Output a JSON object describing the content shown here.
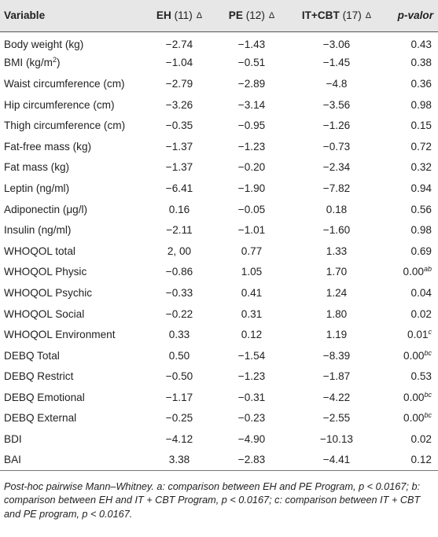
{
  "header": {
    "variable": "Variable",
    "eh": "EH",
    "eh_n": "(11)",
    "pe": "PE",
    "pe_n": "(12)",
    "itcbt": "IT+CBT",
    "itcbt_n": "(17)",
    "delta": "Δ",
    "pvalue": "p-valor"
  },
  "rows": [
    {
      "variable": "Body weight (kg)",
      "eh": "−2.74",
      "pe": "−1.43",
      "itcbt": "−3.06",
      "p": "0.43",
      "sup": ""
    },
    {
      "variable": "BMI (kg/m",
      "var_sup": "2",
      "var_tail": ")",
      "eh": "−1.04",
      "pe": "−0.51",
      "itcbt": "−1.45",
      "p": "0.38",
      "sup": ""
    },
    {
      "variable": "Waist circumference (cm)",
      "eh": "−2.79",
      "pe": "−2.89",
      "itcbt": "−4.8",
      "p": "0.36",
      "sup": ""
    },
    {
      "variable": "Hip circumference (cm)",
      "eh": "−3.26",
      "pe": "−3.14",
      "itcbt": "−3.56",
      "p": "0.98",
      "sup": ""
    },
    {
      "variable": "Thigh circumference (cm)",
      "eh": "−0.35",
      "pe": "−0.95",
      "itcbt": "−1.26",
      "p": "0.15",
      "sup": ""
    },
    {
      "variable": "Fat-free mass (kg)",
      "eh": "−1.37",
      "pe": "−1.23",
      "itcbt": "−0.73",
      "p": "0.72",
      "sup": ""
    },
    {
      "variable": "Fat mass (kg)",
      "eh": "−1.37",
      "pe": "−0.20",
      "itcbt": "−2.34",
      "p": "0.32",
      "sup": ""
    },
    {
      "variable": "Leptin (ng/ml)",
      "eh": "−6.41",
      "pe": "−1.90",
      "itcbt": "−7.82",
      "p": "0.94",
      "sup": ""
    },
    {
      "variable": "Adiponectin (μg/l)",
      "eh": "0.16",
      "pe": "−0.05",
      "itcbt": "0.18",
      "p": "0.56",
      "sup": ""
    },
    {
      "variable": "Insulin (ng/ml)",
      "eh": "−2.11",
      "pe": "−1.01",
      "itcbt": "−1.60",
      "p": "0.98",
      "sup": ""
    },
    {
      "variable": "WHOQOL total",
      "eh": "2, 00",
      "pe": "0.77",
      "itcbt": "1.33",
      "p": "0.69",
      "sup": ""
    },
    {
      "variable": "WHOQOL Physic",
      "eh": "−0.86",
      "pe": "1.05",
      "itcbt": "1.70",
      "p": "0.00",
      "sup": "ab"
    },
    {
      "variable": "WHOQOL Psychic",
      "eh": "−0.33",
      "pe": "0.41",
      "itcbt": "1.24",
      "p": "0.04",
      "sup": ""
    },
    {
      "variable": "WHOQOL Social",
      "eh": "−0.22",
      "pe": "0.31",
      "itcbt": "1.80",
      "p": "0.02",
      "sup": ""
    },
    {
      "variable": "WHOQOL Environment",
      "eh": "0.33",
      "pe": "0.12",
      "itcbt": "1.19",
      "p": "0.01",
      "sup": "c"
    },
    {
      "variable": "DEBQ Total",
      "eh": "0.50",
      "pe": "−1.54",
      "itcbt": "−8.39",
      "p": "0.00",
      "sup": "bc"
    },
    {
      "variable": "DEBQ Restrict",
      "eh": "−0.50",
      "pe": "−1.23",
      "itcbt": "−1.87",
      "p": "0.53",
      "sup": ""
    },
    {
      "variable": "DEBQ Emotional",
      "eh": "−1.17",
      "pe": "−0.31",
      "itcbt": "−4.22",
      "p": "0.00",
      "sup": "bc"
    },
    {
      "variable": "DEBQ External",
      "eh": "−0.25",
      "pe": "−0.23",
      "itcbt": "−2.55",
      "p": "0.00",
      "sup": "bc"
    },
    {
      "variable": "BDI",
      "eh": "−4.12",
      "pe": "−4.90",
      "itcbt": "−10.13",
      "p": "0.02",
      "sup": ""
    },
    {
      "variable": "BAI",
      "eh": "3.38",
      "pe": "−2.83",
      "itcbt": "−4.41",
      "p": "0.12",
      "sup": ""
    }
  ],
  "footnote": "Post-hoc pairwise Mann–Whitney. a: comparison between EH and PE Program, p < 0.0167; b: comparison between EH and IT + CBT Program, p < 0.0167; c: comparison between IT + CBT and PE program, p < 0.0167."
}
